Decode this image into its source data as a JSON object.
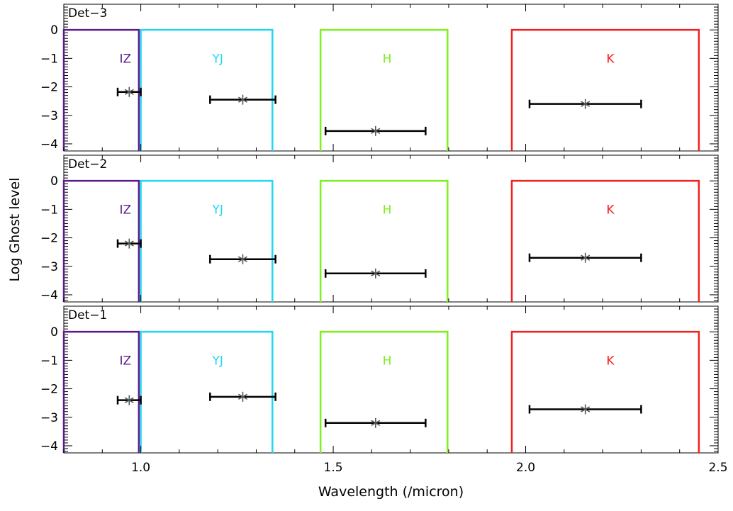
{
  "chart_data": {
    "type": "scatter",
    "xlabel": "Wavelength (/micron)",
    "ylabel": "Log Ghost level",
    "xlim": [
      0.8,
      2.5
    ],
    "ylim": [
      -4.25,
      0.9
    ],
    "x_ticks": [
      1.0,
      1.5,
      2.0,
      2.5
    ],
    "x_tick_labels": [
      "1.0",
      "1.5",
      "2.0",
      "2.5"
    ],
    "y_ticks": [
      0,
      -1,
      -2,
      -3,
      -4
    ],
    "y_tick_labels": [
      "0",
      "−1",
      "−2",
      "−3",
      "−4"
    ],
    "bands": [
      {
        "name": "IZ",
        "x0": 0.8,
        "x1": 0.995,
        "color": "#5b1a8c",
        "label_x": 0.96
      },
      {
        "name": "YJ",
        "x0": 1.0,
        "x1": 1.342,
        "color": "#21d7f0",
        "label_x": 1.2
      },
      {
        "name": "H",
        "x0": 1.467,
        "x1": 1.797,
        "color": "#7ef01e",
        "label_x": 1.64
      },
      {
        "name": "K",
        "x0": 1.964,
        "x1": 2.45,
        "color": "#f41f1f",
        "label_x": 2.22
      }
    ],
    "panels": [
      {
        "name": "Det−3",
        "points": [
          {
            "band": "IZ",
            "x": 0.97,
            "xmin": 0.94,
            "xmax": 1.0,
            "y": -2.18
          },
          {
            "band": "YJ",
            "x": 1.265,
            "xmin": 1.18,
            "xmax": 1.35,
            "y": -2.45
          },
          {
            "band": "H",
            "x": 1.61,
            "xmin": 1.48,
            "xmax": 1.74,
            "y": -3.55
          },
          {
            "band": "K",
            "x": 2.155,
            "xmin": 2.01,
            "xmax": 2.3,
            "y": -2.6
          }
        ]
      },
      {
        "name": "Det−2",
        "points": [
          {
            "band": "IZ",
            "x": 0.97,
            "xmin": 0.94,
            "xmax": 1.0,
            "y": -2.2
          },
          {
            "band": "YJ",
            "x": 1.265,
            "xmin": 1.18,
            "xmax": 1.35,
            "y": -2.75
          },
          {
            "band": "H",
            "x": 1.61,
            "xmin": 1.48,
            "xmax": 1.74,
            "y": -3.25
          },
          {
            "band": "K",
            "x": 2.155,
            "xmin": 2.01,
            "xmax": 2.3,
            "y": -2.7
          }
        ]
      },
      {
        "name": "Det−1",
        "points": [
          {
            "band": "IZ",
            "x": 0.97,
            "xmin": 0.94,
            "xmax": 1.0,
            "y": -2.4
          },
          {
            "band": "YJ",
            "x": 1.265,
            "xmin": 1.18,
            "xmax": 1.35,
            "y": -2.28
          },
          {
            "band": "H",
            "x": 1.61,
            "xmin": 1.48,
            "xmax": 1.74,
            "y": -3.2
          },
          {
            "band": "K",
            "x": 2.155,
            "xmin": 2.01,
            "xmax": 2.3,
            "y": -2.72
          }
        ]
      }
    ]
  }
}
